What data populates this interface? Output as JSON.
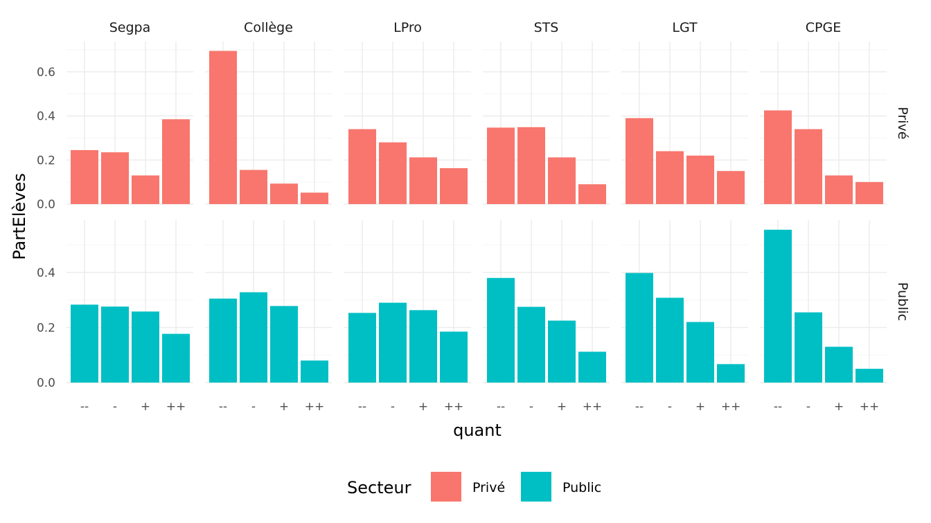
{
  "chart_data": {
    "type": "bar",
    "xlabel": "quant",
    "ylabel": "PartElèves",
    "categories": [
      "--",
      "-",
      "+",
      "++"
    ],
    "facet_columns": [
      "Segpa",
      "Collège",
      "LPro",
      "STS",
      "LGT",
      "CPGE"
    ],
    "facet_rows": [
      {
        "name": "Privé",
        "color": "#F8766D",
        "yticks": [
          0.0,
          0.2,
          0.4,
          0.6
        ],
        "ytick_labels": [
          "0.0",
          "0.2",
          "0.4",
          "0.6"
        ],
        "ylim": [
          0,
          0.72
        ],
        "panels": [
          {
            "facet": "Segpa",
            "values": [
              0.245,
              0.235,
              0.13,
              0.385
            ]
          },
          {
            "facet": "Collège",
            "values": [
              0.695,
              0.155,
              0.093,
              0.052
            ]
          },
          {
            "facet": "LPro",
            "values": [
              0.34,
              0.28,
              0.212,
              0.163
            ]
          },
          {
            "facet": "STS",
            "values": [
              0.347,
              0.349,
              0.212,
              0.09
            ]
          },
          {
            "facet": "LGT",
            "values": [
              0.39,
              0.24,
              0.22,
              0.15
            ]
          },
          {
            "facet": "CPGE",
            "values": [
              0.425,
              0.34,
              0.13,
              0.1
            ]
          }
        ]
      },
      {
        "name": "Public",
        "color": "#00BFC4",
        "yticks": [
          0.0,
          0.2,
          0.4
        ],
        "ytick_labels": [
          "0.0",
          "0.2",
          "0.4"
        ],
        "ylim": [
          0,
          0.58
        ],
        "panels": [
          {
            "facet": "Segpa",
            "values": [
              0.283,
              0.276,
              0.258,
              0.177
            ]
          },
          {
            "facet": "Collège",
            "values": [
              0.305,
              0.328,
              0.278,
              0.08
            ]
          },
          {
            "facet": "LPro",
            "values": [
              0.253,
              0.29,
              0.263,
              0.185
            ]
          },
          {
            "facet": "STS",
            "values": [
              0.38,
              0.275,
              0.225,
              0.112
            ]
          },
          {
            "facet": "LGT",
            "values": [
              0.398,
              0.308,
              0.22,
              0.067
            ]
          },
          {
            "facet": "CPGE",
            "values": [
              0.555,
              0.255,
              0.13,
              0.05
            ]
          }
        ]
      }
    ],
    "legend": {
      "title": "Secteur",
      "position": "bottom",
      "entries": [
        {
          "label": "Privé",
          "color": "#F8766D"
        },
        {
          "label": "Public",
          "color": "#00BFC4"
        }
      ]
    },
    "grid": true
  }
}
